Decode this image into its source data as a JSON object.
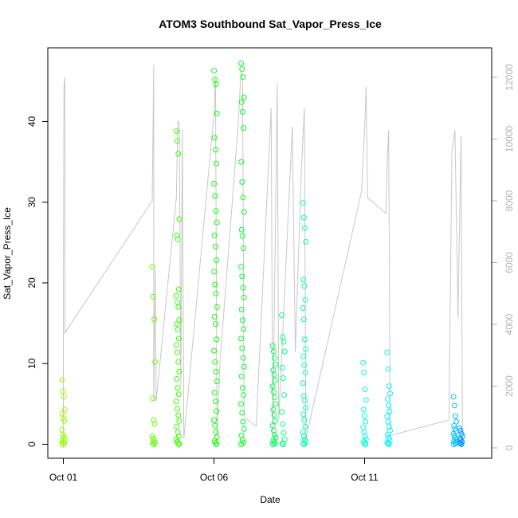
{
  "chart_data": {
    "type": "scatter",
    "title": "ATOM3 Southbound Sat_Vapor_Press_Ice",
    "xlabel": "Date",
    "ylabel": "Sat_Vapor_Press_Ice",
    "x_ticks": [
      {
        "label": "Oct 01",
        "day": 1
      },
      {
        "label": "Oct 06",
        "day": 6
      },
      {
        "label": "Oct 11",
        "day": 11
      }
    ],
    "xlim": [
      "Sep 30 12:00",
      "Oct 15 12:00"
    ],
    "ylim": [
      -1.5,
      48.5
    ],
    "y_ticks": [
      0,
      10,
      20,
      30,
      40
    ],
    "y2_ticks": [
      0,
      2000,
      4000,
      6000,
      8000,
      10000,
      12000
    ],
    "y2lim": [
      -400,
      12900
    ],
    "grid": false,
    "point_style": "open circle, colour varies with time (chartreuse to azure)",
    "secondary_line_color": "#c8c8c8",
    "secondary_series": "altitude trace on right axis (no legend)",
    "series": [
      {
        "day": 1.0,
        "points": [
          8.0,
          6.6,
          5.9,
          4.3,
          3.8,
          3.2,
          2.9,
          1.8,
          1.2,
          0.9,
          0.6,
          0.4,
          0.2,
          0.1,
          0.0
        ]
      },
      {
        "day": 4.0,
        "points": [
          22.0,
          18.3,
          15.5,
          10.2,
          5.7,
          3.0,
          2.5,
          1.0,
          0.7,
          0.4,
          0.2,
          0.1,
          0.0
        ]
      },
      {
        "day": 4.8,
        "points": [
          38.8,
          37.6,
          36.0,
          27.9,
          25.9,
          25.4,
          19.2,
          18.4,
          17.6,
          17.0,
          15.4,
          14.9,
          14.2,
          13.1,
          12.3,
          11.4,
          10.2,
          9.0,
          8.1,
          7.0,
          6.2,
          5.3,
          4.4,
          3.6,
          2.9,
          2.2,
          1.5,
          1.0,
          0.6,
          0.3,
          0.1,
          0.0
        ]
      },
      {
        "day": 6.05,
        "points": [
          46.3,
          45.2,
          44.6,
          41.0,
          38.0,
          36.5,
          34.8,
          32.3,
          30.8,
          28.9,
          27.5,
          25.9,
          24.5,
          22.8,
          21.4,
          19.8,
          18.7,
          17.0,
          15.8,
          14.9,
          13.0,
          11.6,
          10.2,
          9.0,
          7.8,
          6.4,
          5.3,
          4.1,
          3.0,
          2.3,
          1.5,
          0.9,
          0.4,
          0.2,
          0.0
        ]
      },
      {
        "day": 6.95,
        "points": [
          47.2,
          46.5,
          45.5,
          43.0,
          42.4,
          41.2,
          39.2,
          35.0,
          32.5,
          30.6,
          28.8,
          26.6,
          25.8,
          24.3,
          22.0,
          20.8,
          19.4,
          18.2,
          16.7,
          15.4,
          14.3,
          13.1,
          11.9,
          10.7,
          9.6,
          8.4,
          7.0,
          6.1,
          5.0,
          3.9,
          2.8,
          1.9,
          1.1,
          0.5,
          0.2,
          0.0
        ]
      },
      {
        "day": 8.0,
        "points": [
          12.2,
          11.5,
          10.7,
          9.9,
          9.2,
          8.6,
          7.9,
          7.2,
          6.5,
          5.8,
          5.0,
          4.3,
          3.6,
          2.9,
          2.3,
          1.7,
          1.2,
          0.8,
          0.5,
          0.3,
          0.1,
          0.0
        ]
      },
      {
        "day": 8.3,
        "points": [
          16.0,
          13.3,
          12.7,
          11.5,
          9.5,
          8.2,
          6.1,
          4.0,
          2.5,
          1.4,
          0.6,
          0.1,
          0.0
        ]
      },
      {
        "day": 9.0,
        "points": [
          29.9,
          28.1,
          26.8,
          25.1,
          20.4,
          19.6,
          17.9,
          16.9,
          15.5,
          13.0,
          11.8,
          10.9,
          9.8,
          8.9,
          7.6,
          6.0,
          5.4,
          4.5,
          3.7,
          3.0,
          2.2,
          1.5,
          1.0,
          0.6,
          0.3,
          0.1,
          0.0
        ]
      },
      {
        "day": 11.0,
        "points": [
          10.1,
          8.9,
          6.8,
          5.5,
          4.3,
          3.5,
          2.8,
          2.1,
          1.5,
          1.0,
          0.6,
          0.3,
          0.1,
          0.0
        ]
      },
      {
        "day": 11.8,
        "points": [
          11.4,
          9.3,
          7.2,
          6.3,
          5.6,
          4.8,
          4.1,
          3.5,
          2.8,
          2.2,
          1.7,
          1.2,
          0.8,
          0.5,
          0.2,
          0.1,
          0.0
        ]
      },
      {
        "day": 14.0,
        "points": [
          5.9,
          4.8,
          3.5,
          2.8,
          2.3,
          1.9,
          1.6,
          1.3,
          1.0,
          0.8,
          0.6,
          0.4,
          0.2,
          0.1,
          0.0
        ]
      },
      {
        "day": 14.2,
        "points": [
          2.0,
          1.7,
          1.3,
          1.0,
          0.7,
          0.5,
          0.3,
          0.2,
          0.1,
          0.0
        ]
      }
    ],
    "altitude_trace": [
      [
        1.0,
        0
      ],
      [
        1.0,
        5000
      ],
      [
        1.02,
        11700
      ],
      [
        1.05,
        12000
      ],
      [
        1.05,
        3700
      ],
      [
        1.1,
        3800
      ],
      [
        3.95,
        8000
      ],
      [
        4.0,
        12400
      ],
      [
        4.0,
        1500
      ],
      [
        4.05,
        5800
      ],
      [
        4.08,
        1500
      ],
      [
        4.75,
        8100
      ],
      [
        4.8,
        10600
      ],
      [
        4.85,
        10500
      ],
      [
        4.9,
        2000
      ],
      [
        4.95,
        10300
      ],
      [
        5.0,
        300
      ],
      [
        6.0,
        10800
      ],
      [
        6.05,
        12000
      ],
      [
        6.1,
        400
      ],
      [
        6.2,
        2800
      ],
      [
        6.8,
        10400
      ],
      [
        6.9,
        12200
      ],
      [
        6.95,
        11900
      ],
      [
        7.0,
        1000
      ],
      [
        7.4,
        700
      ],
      [
        7.9,
        11000
      ],
      [
        7.95,
        400
      ],
      [
        8.1,
        11800
      ],
      [
        8.15,
        900
      ],
      [
        8.6,
        10400
      ],
      [
        8.7,
        3100
      ],
      [
        8.9,
        9000
      ],
      [
        9.0,
        11000
      ],
      [
        9.05,
        300
      ],
      [
        10.9,
        8300
      ],
      [
        11.0,
        10300
      ],
      [
        11.05,
        11700
      ],
      [
        11.1,
        8100
      ],
      [
        11.7,
        7600
      ],
      [
        11.75,
        9200
      ],
      [
        11.8,
        10300
      ],
      [
        11.85,
        400
      ],
      [
        13.8,
        900
      ],
      [
        13.9,
        9600
      ],
      [
        14.0,
        10300
      ],
      [
        14.1,
        4200
      ],
      [
        14.2,
        10100
      ],
      [
        14.25,
        100
      ]
    ]
  }
}
